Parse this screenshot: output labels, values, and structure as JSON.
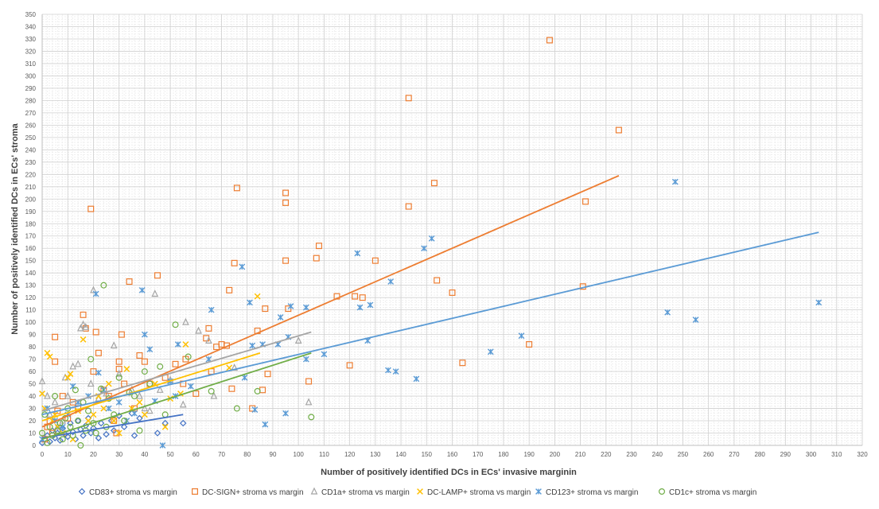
{
  "chart_data": {
    "type": "scatter",
    "title": "",
    "xlabel": "Number of positively identified DCs in ECs' invasive marginin",
    "ylabel": "Number of  positively identified DCs in ECs' stroma",
    "xlim": [
      0,
      320
    ],
    "ylim": [
      0,
      350
    ],
    "xticks": [
      0,
      10,
      20,
      30,
      40,
      50,
      60,
      70,
      80,
      90,
      100,
      110,
      120,
      130,
      140,
      150,
      160,
      170,
      180,
      190,
      200,
      210,
      220,
      230,
      240,
      250,
      260,
      270,
      280,
      290,
      300,
      310,
      320
    ],
    "yticks": [
      0,
      10,
      20,
      30,
      40,
      50,
      60,
      70,
      80,
      90,
      100,
      110,
      120,
      130,
      140,
      150,
      160,
      170,
      180,
      190,
      200,
      210,
      220,
      230,
      240,
      250,
      260,
      270,
      280,
      290,
      300,
      310,
      320,
      330,
      340,
      350
    ],
    "grid": true,
    "legend_position": "bottom",
    "series": [
      {
        "name": "CD83+ stroma vs margin",
        "color": "#4472c4",
        "marker": "diamond",
        "points": [
          [
            0,
            2
          ],
          [
            1,
            5
          ],
          [
            2,
            8
          ],
          [
            3,
            3
          ],
          [
            4,
            12
          ],
          [
            5,
            6
          ],
          [
            6,
            10
          ],
          [
            7,
            4
          ],
          [
            8,
            14
          ],
          [
            9,
            9
          ],
          [
            10,
            7
          ],
          [
            11,
            18
          ],
          [
            12,
            11
          ],
          [
            13,
            5
          ],
          [
            14,
            20
          ],
          [
            15,
            13
          ],
          [
            16,
            8
          ],
          [
            17,
            16
          ],
          [
            18,
            22
          ],
          [
            19,
            10
          ],
          [
            20,
            14
          ],
          [
            22,
            6
          ],
          [
            23,
            18
          ],
          [
            25,
            9
          ],
          [
            27,
            20
          ],
          [
            28,
            12
          ],
          [
            30,
            24
          ],
          [
            32,
            15
          ],
          [
            35,
            26
          ],
          [
            36,
            8
          ],
          [
            38,
            22
          ],
          [
            45,
            10
          ],
          [
            48,
            18
          ],
          [
            55,
            18
          ]
        ],
        "trend": [
          [
            0,
            6
          ],
          [
            55,
            25
          ]
        ]
      },
      {
        "name": "DC-SIGN+ stroma vs margin",
        "color": "#ed7d31",
        "marker": "square",
        "points": [
          [
            1,
            5
          ],
          [
            2,
            15
          ],
          [
            3,
            20
          ],
          [
            4,
            10
          ],
          [
            5,
            88
          ],
          [
            5,
            68
          ],
          [
            6,
            28
          ],
          [
            8,
            40
          ],
          [
            10,
            22
          ],
          [
            12,
            35
          ],
          [
            14,
            30
          ],
          [
            16,
            106
          ],
          [
            17,
            95
          ],
          [
            19,
            192
          ],
          [
            20,
            60
          ],
          [
            21,
            92
          ],
          [
            22,
            75
          ],
          [
            24,
            45
          ],
          [
            26,
            40
          ],
          [
            28,
            20
          ],
          [
            29,
            10
          ],
          [
            30,
            68
          ],
          [
            30,
            62
          ],
          [
            31,
            90
          ],
          [
            32,
            50
          ],
          [
            34,
            133
          ],
          [
            36,
            30
          ],
          [
            38,
            73
          ],
          [
            40,
            68
          ],
          [
            42,
            50
          ],
          [
            45,
            138
          ],
          [
            48,
            55
          ],
          [
            52,
            66
          ],
          [
            55,
            50
          ],
          [
            56,
            70
          ],
          [
            60,
            42
          ],
          [
            64,
            87
          ],
          [
            65,
            95
          ],
          [
            66,
            60
          ],
          [
            68,
            80
          ],
          [
            70,
            82
          ],
          [
            72,
            81
          ],
          [
            73,
            126
          ],
          [
            74,
            46
          ],
          [
            75,
            148
          ],
          [
            76,
            209
          ],
          [
            82,
            30
          ],
          [
            84,
            93
          ],
          [
            86,
            45
          ],
          [
            87,
            111
          ],
          [
            88,
            58
          ],
          [
            95,
            150
          ],
          [
            95,
            205
          ],
          [
            95,
            197
          ],
          [
            96,
            111
          ],
          [
            104,
            52
          ],
          [
            107,
            152
          ],
          [
            108,
            162
          ],
          [
            115,
            121
          ],
          [
            120,
            65
          ],
          [
            122,
            121
          ],
          [
            125,
            120
          ],
          [
            130,
            150
          ],
          [
            143,
            282
          ],
          [
            143,
            194
          ],
          [
            153,
            213
          ],
          [
            154,
            134
          ],
          [
            160,
            124
          ],
          [
            164,
            67
          ],
          [
            190,
            82
          ],
          [
            198,
            329
          ],
          [
            211,
            129
          ],
          [
            212,
            198
          ],
          [
            225,
            256
          ]
        ],
        "trend": [
          [
            0,
            15
          ],
          [
            225,
            219
          ]
        ]
      },
      {
        "name": "CD1a+ stroma vs margin",
        "color": "#a5a5a5",
        "marker": "triangle",
        "points": [
          [
            0,
            52
          ],
          [
            2,
            40
          ],
          [
            3,
            25
          ],
          [
            5,
            35
          ],
          [
            6,
            15
          ],
          [
            8,
            20
          ],
          [
            9,
            55
          ],
          [
            10,
            40
          ],
          [
            12,
            64
          ],
          [
            14,
            66
          ],
          [
            15,
            95
          ],
          [
            16,
            98
          ],
          [
            17,
            96
          ],
          [
            19,
            50
          ],
          [
            20,
            126
          ],
          [
            22,
            38
          ],
          [
            25,
            42
          ],
          [
            28,
            81
          ],
          [
            30,
            58
          ],
          [
            35,
            45
          ],
          [
            38,
            40
          ],
          [
            40,
            30
          ],
          [
            42,
            28
          ],
          [
            44,
            123
          ],
          [
            46,
            45
          ],
          [
            50,
            53
          ],
          [
            55,
            33
          ],
          [
            56,
            100
          ],
          [
            61,
            93
          ],
          [
            65,
            85
          ],
          [
            67,
            40
          ],
          [
            75,
            63
          ],
          [
            100,
            85
          ],
          [
            104,
            35
          ]
        ],
        "trend": [
          [
            0,
            28
          ],
          [
            105,
            92
          ]
        ]
      },
      {
        "name": "DC-LAMP+ stroma vs margin",
        "color": "#ffc000",
        "marker": "x",
        "points": [
          [
            0,
            42
          ],
          [
            1,
            30
          ],
          [
            2,
            75
          ],
          [
            3,
            72
          ],
          [
            4,
            20
          ],
          [
            5,
            25
          ],
          [
            6,
            15
          ],
          [
            8,
            10
          ],
          [
            10,
            55
          ],
          [
            11,
            58
          ],
          [
            12,
            5
          ],
          [
            14,
            28
          ],
          [
            16,
            86
          ],
          [
            18,
            20
          ],
          [
            20,
            25
          ],
          [
            22,
            40
          ],
          [
            24,
            30
          ],
          [
            26,
            50
          ],
          [
            28,
            20
          ],
          [
            30,
            10
          ],
          [
            33,
            62
          ],
          [
            35,
            30
          ],
          [
            38,
            35
          ],
          [
            40,
            25
          ],
          [
            44,
            50
          ],
          [
            48,
            15
          ],
          [
            50,
            38
          ],
          [
            54,
            42
          ],
          [
            56,
            82
          ],
          [
            73,
            63
          ],
          [
            84,
            121
          ]
        ],
        "trend": [
          [
            0,
            20
          ],
          [
            85,
            75
          ]
        ]
      },
      {
        "name": "CD123+ stroma vs margin",
        "color": "#5b9bd5",
        "marker": "star",
        "points": [
          [
            0,
            5
          ],
          [
            2,
            30
          ],
          [
            5,
            20
          ],
          [
            8,
            15
          ],
          [
            10,
            25
          ],
          [
            12,
            48
          ],
          [
            14,
            35
          ],
          [
            18,
            40
          ],
          [
            21,
            123
          ],
          [
            22,
            59
          ],
          [
            24,
            45
          ],
          [
            26,
            30
          ],
          [
            30,
            35
          ],
          [
            33,
            20
          ],
          [
            36,
            26
          ],
          [
            39,
            126
          ],
          [
            40,
            90
          ],
          [
            42,
            78
          ],
          [
            44,
            36
          ],
          [
            47,
            0
          ],
          [
            50,
            52
          ],
          [
            52,
            40
          ],
          [
            53,
            82
          ],
          [
            58,
            48
          ],
          [
            65,
            70
          ],
          [
            66,
            110
          ],
          [
            78,
            145
          ],
          [
            79,
            55
          ],
          [
            81,
            116
          ],
          [
            82,
            81
          ],
          [
            83,
            29
          ],
          [
            86,
            82
          ],
          [
            87,
            17
          ],
          [
            92,
            82
          ],
          [
            93,
            104
          ],
          [
            95,
            26
          ],
          [
            96,
            88
          ],
          [
            97,
            113
          ],
          [
            103,
            112
          ],
          [
            103,
            70
          ],
          [
            110,
            74
          ],
          [
            123,
            156
          ],
          [
            124,
            112
          ],
          [
            127,
            85
          ],
          [
            128,
            114
          ],
          [
            135,
            61
          ],
          [
            136,
            133
          ],
          [
            138,
            60
          ],
          [
            146,
            54
          ],
          [
            149,
            160
          ],
          [
            152,
            168
          ],
          [
            175,
            76
          ],
          [
            187,
            89
          ],
          [
            244,
            108
          ],
          [
            247,
            214
          ],
          [
            255,
            102
          ],
          [
            303,
            116
          ]
        ],
        "trend": [
          [
            0,
            25
          ],
          [
            303,
            173
          ]
        ]
      },
      {
        "name": "CD1c+ stroma vs margin",
        "color": "#70ad47",
        "marker": "circle",
        "points": [
          [
            0,
            10
          ],
          [
            1,
            25
          ],
          [
            2,
            2
          ],
          [
            3,
            15
          ],
          [
            4,
            8
          ],
          [
            5,
            40
          ],
          [
            6,
            12
          ],
          [
            7,
            18
          ],
          [
            8,
            5
          ],
          [
            9,
            22
          ],
          [
            10,
            30
          ],
          [
            11,
            15
          ],
          [
            12,
            8
          ],
          [
            13,
            45
          ],
          [
            14,
            20
          ],
          [
            15,
            0
          ],
          [
            16,
            35
          ],
          [
            17,
            12
          ],
          [
            18,
            28
          ],
          [
            19,
            70
          ],
          [
            20,
            18
          ],
          [
            21,
            10
          ],
          [
            23,
            46
          ],
          [
            24,
            130
          ],
          [
            25,
            15
          ],
          [
            26,
            38
          ],
          [
            28,
            25
          ],
          [
            30,
            55
          ],
          [
            32,
            20
          ],
          [
            34,
            43
          ],
          [
            36,
            40
          ],
          [
            38,
            12
          ],
          [
            40,
            60
          ],
          [
            42,
            50
          ],
          [
            46,
            64
          ],
          [
            48,
            25
          ],
          [
            52,
            98
          ],
          [
            57,
            72
          ],
          [
            66,
            44
          ],
          [
            76,
            30
          ],
          [
            84,
            44
          ],
          [
            105,
            23
          ]
        ],
        "trend": [
          [
            0,
            5
          ],
          [
            105,
            75
          ]
        ]
      }
    ]
  }
}
